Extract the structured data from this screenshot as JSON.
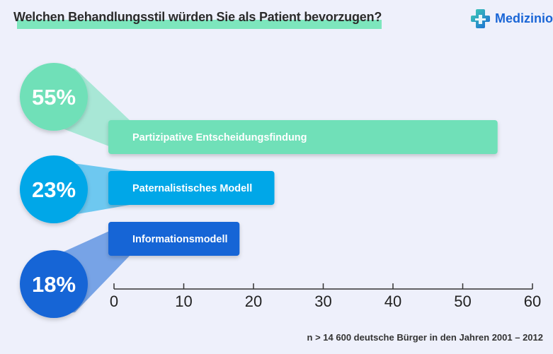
{
  "title": "Welchen Behandlungsstil würden Sie als Patient bevorzugen?",
  "brand": {
    "name": "Medizinio",
    "icon": "cross-logo-icon"
  },
  "footnote": "n > 14 600 deutsche Bürger in den Jahren 2001 – 2012",
  "colors": {
    "background": "#eef0fb",
    "title_underline": "#7de6bd",
    "axis": "#333333",
    "brand_blue": "#1a66d6",
    "brand_teal": "#3fd1b3"
  },
  "chart_data": {
    "type": "bar",
    "orientation": "horizontal",
    "categories": [
      "Partizipative Entscheidungsfindung",
      "Paternalistisches Modell",
      "Informationsmodell"
    ],
    "values": [
      55,
      23,
      18
    ],
    "value_labels": [
      "55%",
      "23%",
      "18%"
    ],
    "bar_colors": [
      "#6fe0b8",
      "#06a7e8",
      "#1565d6"
    ],
    "badge_colors": [
      "#6fe0b8",
      "#06a7e8",
      "#1565d6"
    ],
    "xlim": [
      0,
      60
    ],
    "xticks": [
      0,
      10,
      20,
      30,
      40,
      50,
      60
    ],
    "xtick_labels": [
      "0",
      "10",
      "20",
      "30",
      "40",
      "50",
      "60"
    ],
    "grid": false,
    "title": "Welchen Behandlungsstil würden Sie als Patient bevorzugen?"
  }
}
